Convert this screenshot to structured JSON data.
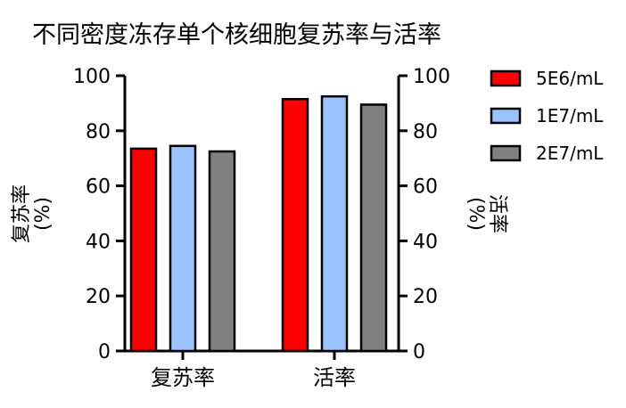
{
  "chart_data": {
    "type": "bar",
    "title": "不同密度冻存单个核细胞复苏率与活率",
    "categories": [
      "复苏率",
      "活率"
    ],
    "series": [
      {
        "name": "5E6/mL",
        "color": "#ff0000",
        "values": [
          73.5,
          91.5
        ]
      },
      {
        "name": "1E7/mL",
        "color": "#99c2ff",
        "values": [
          74.5,
          92.5
        ]
      },
      {
        "name": "2E7/mL",
        "color": "#808080",
        "values": [
          72.5,
          89.5
        ]
      }
    ],
    "ylabel_left": "复苏率\n(%)",
    "ylabel_right": "活率\n(%)",
    "ylim": [
      0,
      100
    ],
    "yticks": [
      0,
      20,
      40,
      60,
      80,
      100
    ],
    "legend_position": "top-right",
    "grid": false
  }
}
